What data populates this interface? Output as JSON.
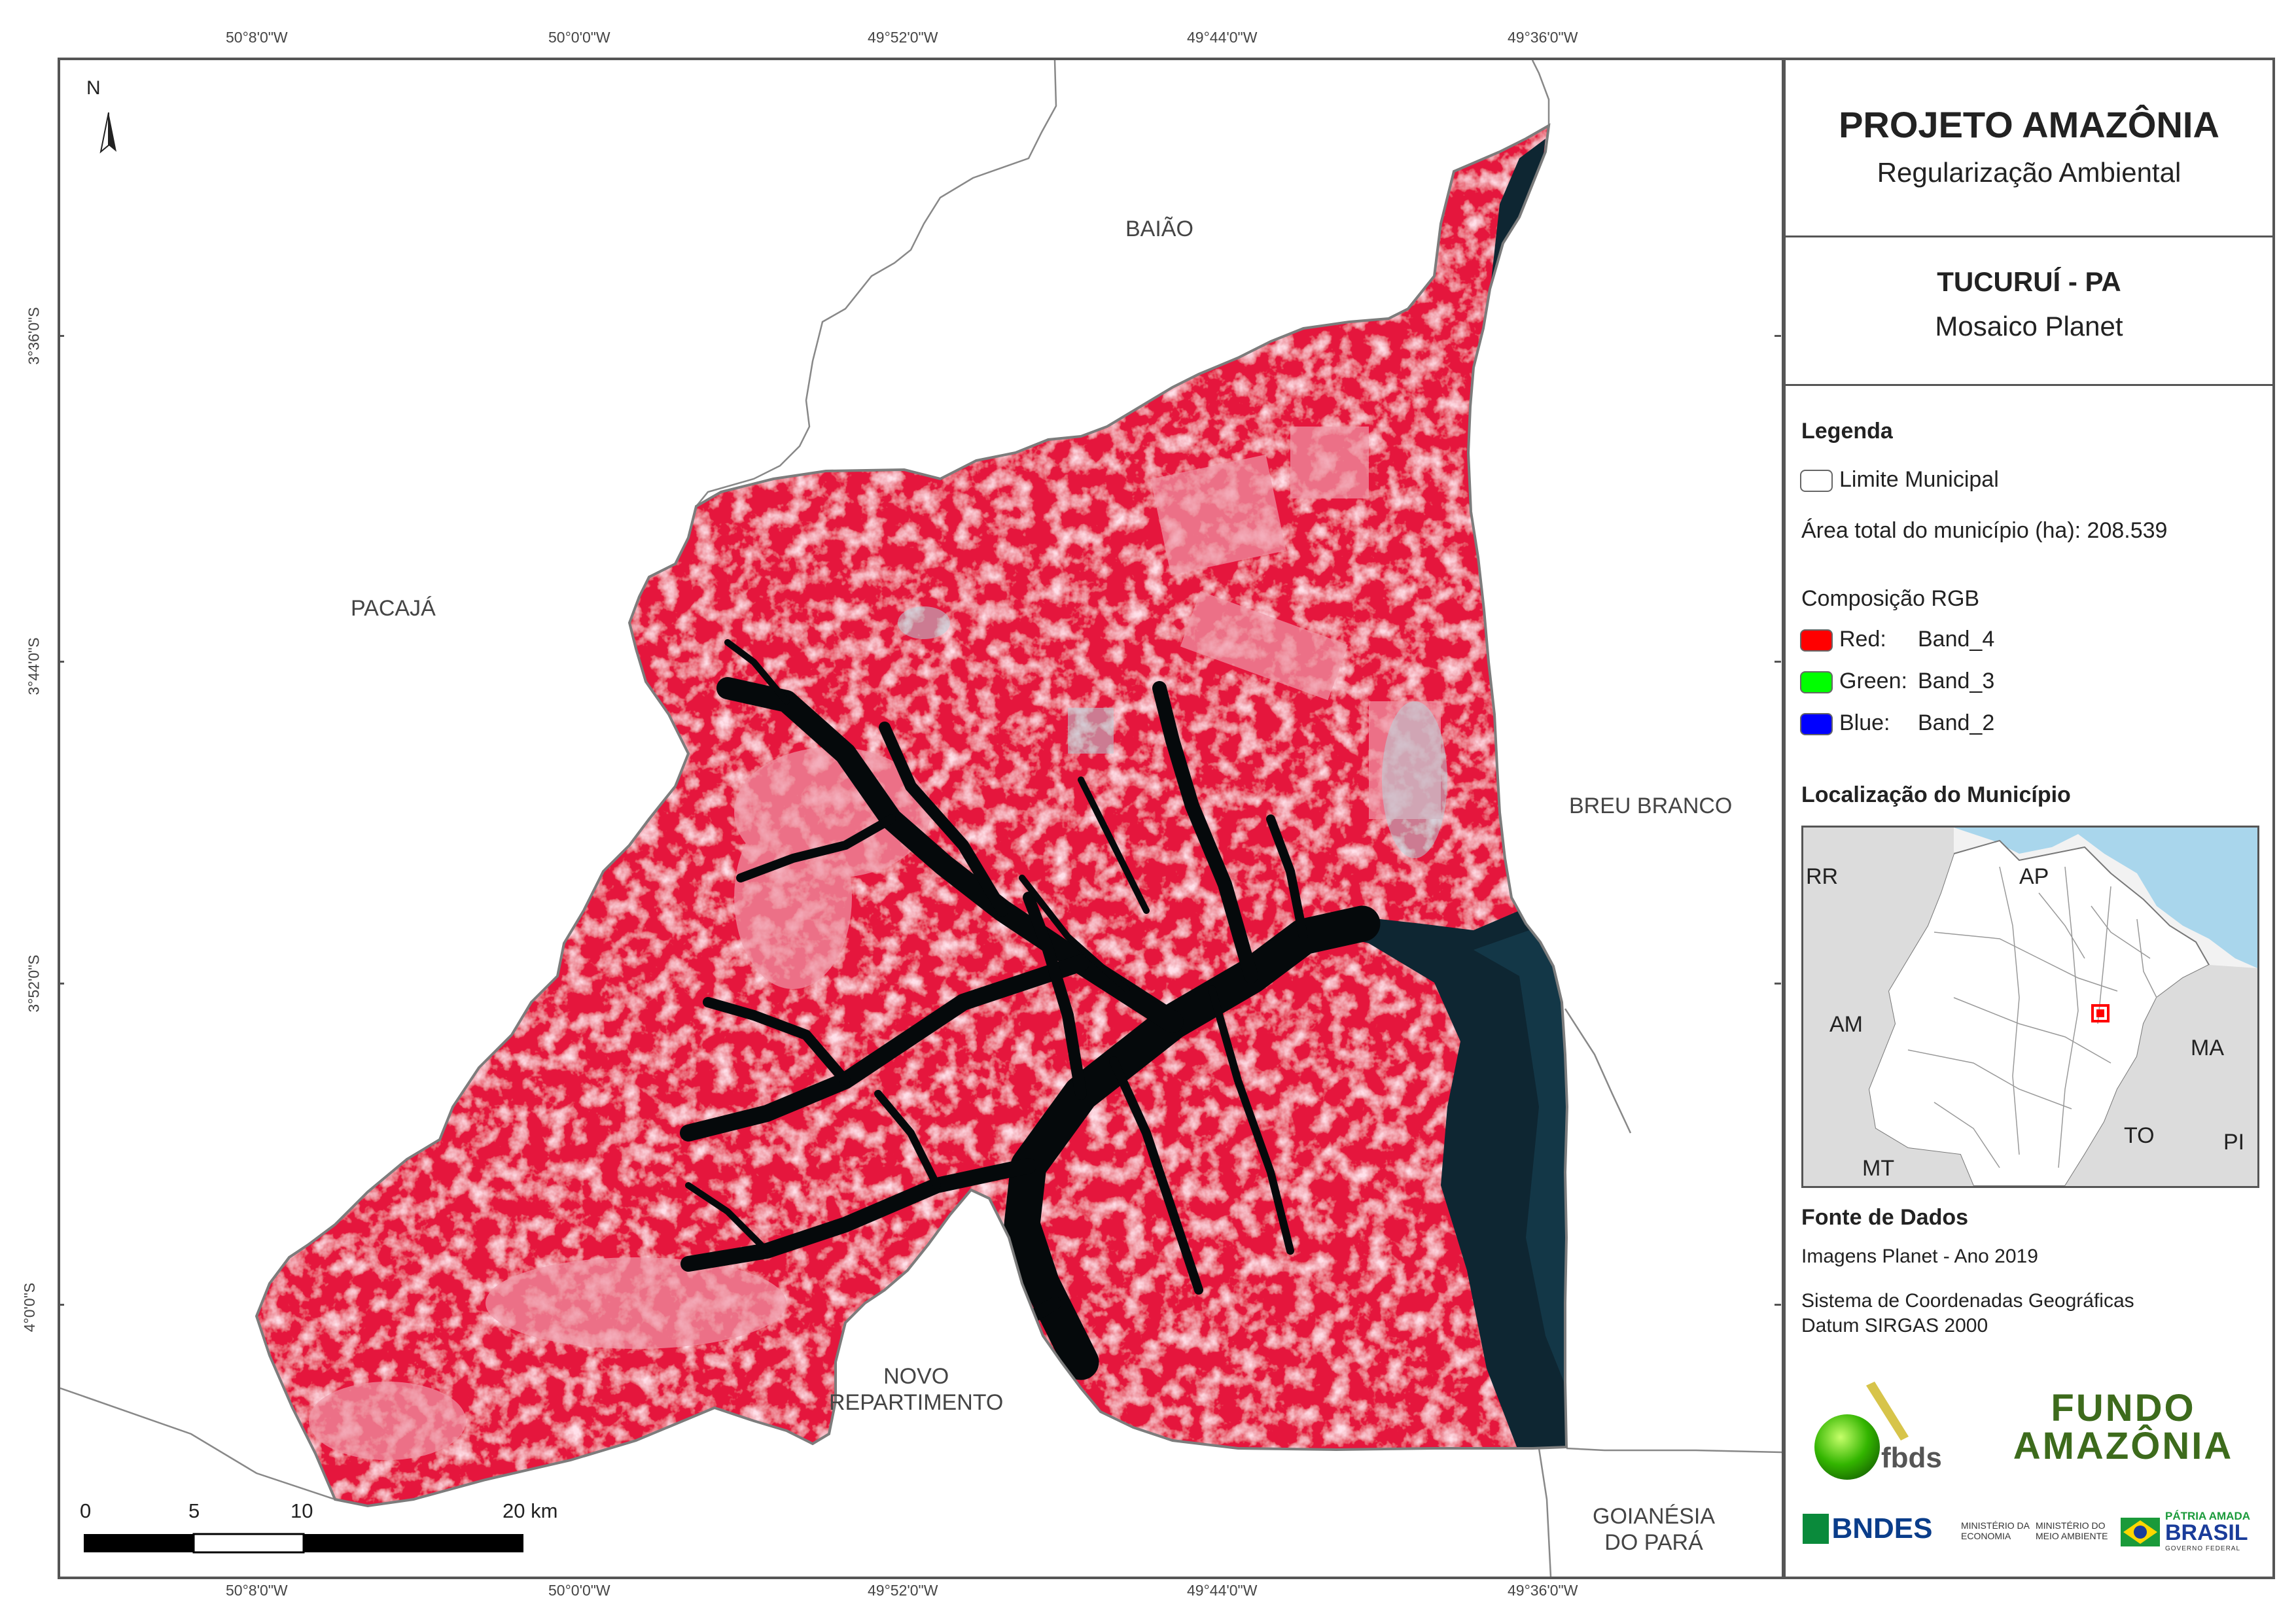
{
  "graticule": {
    "top": [
      "50°8'0\"W",
      "50°0'0\"W",
      "49°52'0\"W",
      "49°44'0\"W",
      "49°36'0\"W"
    ],
    "bottom": [
      "50°8'0\"W",
      "50°0'0\"W",
      "49°52'0\"W",
      "49°44'0\"W",
      "49°36'0\"W"
    ],
    "left": [
      "3°36'0\"S",
      "3°44'0\"S",
      "3°52'0\"S",
      "4°0'0\"S"
    ]
  },
  "north_arrow": "N",
  "neighbors": {
    "baiao": "BAIÃO",
    "pacaja": "PACAJÁ",
    "breu_branco": "BREU BRANCO",
    "novo_repartimento": [
      "NOVO",
      "REPARTIMENTO"
    ],
    "goianesia": [
      "GOIANÉSIA",
      "DO PARÁ"
    ]
  },
  "scale_bar": {
    "labels": [
      "0",
      "5",
      "10",
      "20 km"
    ]
  },
  "panel": {
    "title": "PROJETO AMAZÔNIA",
    "subtitle": "Regularização Ambiental",
    "municipality": "TUCURUÍ - PA",
    "mosaic": "Mosaico Planet",
    "legend": {
      "heading": "Legenda",
      "boundary": "Limite Municipal",
      "area": "Área total do município (ha): 208.539",
      "rgb_heading": "Composição RGB",
      "bands": [
        {
          "channel": "Red:",
          "band": "Band_4",
          "color": "#ff0000"
        },
        {
          "channel": "Green:",
          "band": "Band_3",
          "color": "#00ff00"
        },
        {
          "channel": "Blue:",
          "band": "Band_2",
          "color": "#0000ff"
        }
      ]
    },
    "location": {
      "heading": "Localização do Município",
      "states": [
        "RR",
        "AP",
        "AM",
        "MA",
        "TO",
        "PI",
        "MT"
      ]
    },
    "sources": {
      "heading": "Fonte de Dados",
      "line1": "Imagens Planet - Ano 2019",
      "line2": "Sistema de Coordenadas Geográficas",
      "line3": "Datum SIRGAS 2000"
    },
    "logos": {
      "fbds": "fbds",
      "fundo1": "FUNDO",
      "fundo2": "AMAZÔNIA",
      "bndes": "BNDES",
      "min_economia": [
        "MINISTÉRIO DA",
        "ECONOMIA"
      ],
      "min_ambiente": [
        "MINISTÉRIO DO",
        "MEIO AMBIENTE"
      ],
      "patria1": "PÁTRIA AMADA",
      "patria2": "BRASIL",
      "governo": "GOVERNO FEDERAL"
    }
  }
}
